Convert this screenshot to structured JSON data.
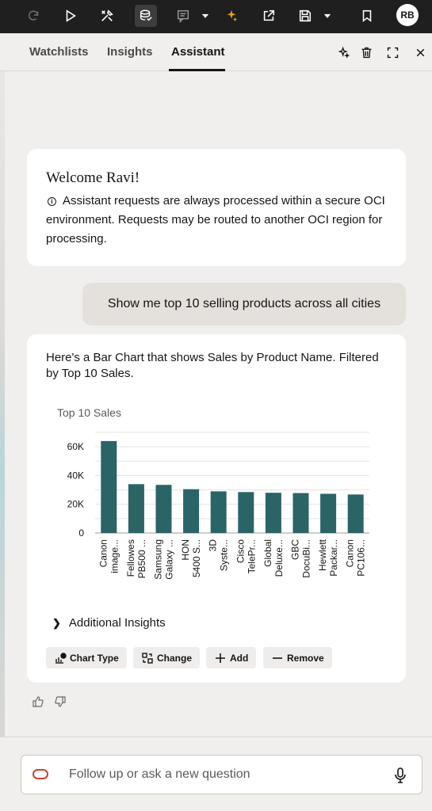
{
  "toolbar": {
    "icons": [
      "redo-icon",
      "run-icon",
      "tools-icon",
      "data-icon",
      "comment-icon",
      "dropdown-icon",
      "ai-sparkle-icon",
      "export-icon",
      "save-icon",
      "dropdown-icon",
      "bookmark-icon"
    ],
    "avatar_initials": "RB"
  },
  "panel": {
    "tabs": [
      {
        "label": "Watchlists",
        "active": false
      },
      {
        "label": "Insights",
        "active": false
      },
      {
        "label": "Assistant",
        "active": true
      }
    ],
    "header_icons": [
      "sparkle-icon",
      "trash-icon",
      "expand-icon",
      "close-icon"
    ]
  },
  "welcome": {
    "title": "Welcome Ravi!",
    "notice": "Assistant requests are always processed within a secure OCI environment. Requests may be routed to another OCI region for processing."
  },
  "user_message": "Show me top 10 selling products across all cities",
  "answer": {
    "text": "Here's a Bar Chart that shows Sales by Product Name. Filtered by Top 10 Sales.",
    "additional_insights": "Additional Insights",
    "actions": [
      {
        "label": "Chart Type",
        "icon": "chart-type-icon"
      },
      {
        "label": "Change",
        "icon": "change-icon"
      },
      {
        "label": "Add",
        "icon": "plus-icon"
      },
      {
        "label": "Remove",
        "icon": "minus-icon"
      }
    ]
  },
  "chart_data": {
    "type": "bar",
    "title": "Top 10 Sales",
    "xlabel": "",
    "ylabel": "",
    "ylim": [
      0,
      70000
    ],
    "yticks": [
      "0",
      "20K",
      "40K",
      "60K"
    ],
    "grid": true,
    "bar_color": "#2a6466",
    "categories": [
      [
        "Canon",
        "image..."
      ],
      [
        "Fellowes",
        "PB500 ..."
      ],
      [
        "Samsung",
        "Galaxy ..."
      ],
      [
        "HON",
        "5400 S..."
      ],
      [
        "3D",
        "Syste..."
      ],
      [
        "Cisco",
        "TelePr..."
      ],
      [
        "Global",
        "Deluxe..."
      ],
      [
        "GBC",
        "DocuBi..."
      ],
      [
        "Hewlett",
        "Packar..."
      ],
      [
        "Canon",
        "PC106..."
      ]
    ],
    "values": [
      64000,
      34000,
      33500,
      30500,
      29000,
      28500,
      28000,
      27800,
      27300,
      26800
    ]
  },
  "input": {
    "placeholder": "Follow up or ask a new question"
  },
  "feedback": [
    "thumbs-up-icon",
    "thumbs-down-icon"
  ]
}
